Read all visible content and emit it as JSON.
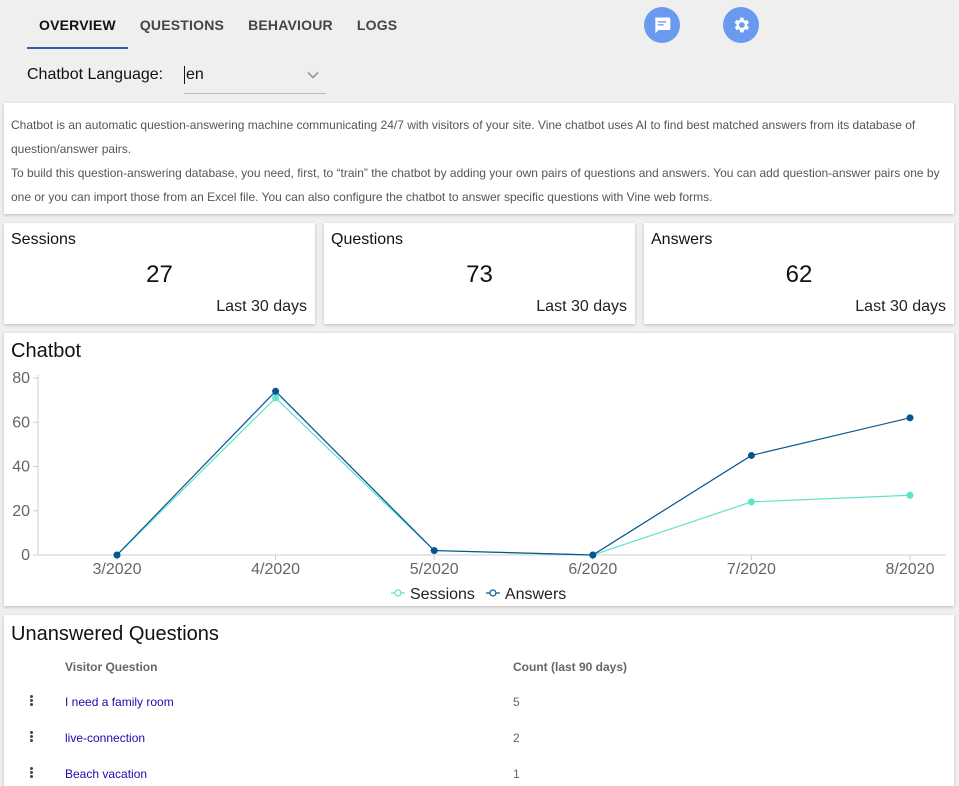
{
  "tabs": [
    {
      "label": "OVERVIEW",
      "active": true
    },
    {
      "label": "QUESTIONS"
    },
    {
      "label": "BEHAVIOUR"
    },
    {
      "label": "LOGS"
    }
  ],
  "icons": {
    "chat": "chat-icon",
    "settings": "gear-icon"
  },
  "colors": {
    "accent": "#6a9af0",
    "tab_indicator": "#3b5ba9",
    "sessions": "#5ee3cc",
    "answers": "#06558f",
    "link": "#1a0dab"
  },
  "language": {
    "label": "Chatbot Language:",
    "value": "en"
  },
  "intro": {
    "p1": "Chatbot is an automatic question-answering machine communicating 24/7 with visitors of your site. Vine chatbot uses AI to find best matched answers from its database of question/answer pairs.",
    "p2": "To build this question-answering database, you need, first, to “train” the chatbot by adding your own pairs of questions and answers. You can add question-answer pairs one by one or you can import those from an Excel file. You can also configure the chatbot to answer specific questions with Vine web forms."
  },
  "stats": [
    {
      "title": "Sessions",
      "value": "27",
      "period": "Last 30 days"
    },
    {
      "title": "Questions",
      "value": "73",
      "period": "Last 30 days"
    },
    {
      "title": "Answers",
      "value": "62",
      "period": "Last 30 days"
    }
  ],
  "chart_data": {
    "type": "line",
    "title": "Chatbot",
    "categories": [
      "3/2020",
      "4/2020",
      "5/2020",
      "6/2020",
      "7/2020",
      "8/2020"
    ],
    "series": [
      {
        "name": "Sessions",
        "values": [
          0,
          71,
          2,
          0,
          24,
          27
        ],
        "color": "#5ee3cc"
      },
      {
        "name": "Answers",
        "values": [
          0,
          74,
          2,
          0,
          45,
          62
        ],
        "color": "#06558f"
      }
    ],
    "yticks": [
      "0",
      "20",
      "40",
      "60",
      "80"
    ],
    "ylim": [
      0,
      80
    ],
    "grid": false,
    "legend": "bottom-center"
  },
  "unanswered": {
    "title": "Unanswered Questions",
    "col_question": "Visitor Question",
    "col_count": "Count (last 90 days)",
    "rows": [
      {
        "question": "I need a family room",
        "count": "5"
      },
      {
        "question": "live-connection",
        "count": "2"
      },
      {
        "question": "Beach vacation",
        "count": "1"
      }
    ]
  }
}
